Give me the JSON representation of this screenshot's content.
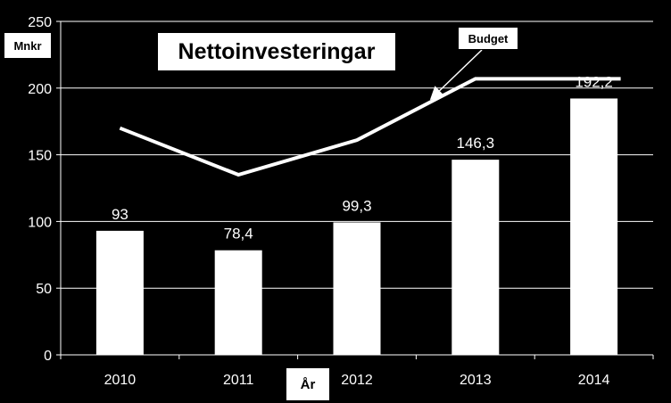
{
  "chart_data": {
    "type": "bar",
    "title": "Nettoinvesteringar",
    "ylabel": "Mnkr",
    "xlabel": "År",
    "categories": [
      "2010",
      "2011",
      "2012",
      "2013",
      "2014"
    ],
    "series": [
      {
        "name": "",
        "type": "bar",
        "values": [
          93,
          78.4,
          99.3,
          146.3,
          192.2
        ],
        "labels": [
          "93",
          "78,4",
          "99,3",
          "146,3",
          "192,2"
        ]
      },
      {
        "name": "Budget",
        "type": "line",
        "values": [
          170,
          135,
          161,
          207,
          207
        ]
      }
    ],
    "ylim": [
      0,
      250
    ],
    "yticks": [
      0,
      50,
      100,
      150,
      200,
      250
    ],
    "grid": true,
    "colors": {
      "background": "#000000",
      "bar": "#ffffff",
      "line": "#ffffff",
      "text": "#ffffff"
    }
  }
}
